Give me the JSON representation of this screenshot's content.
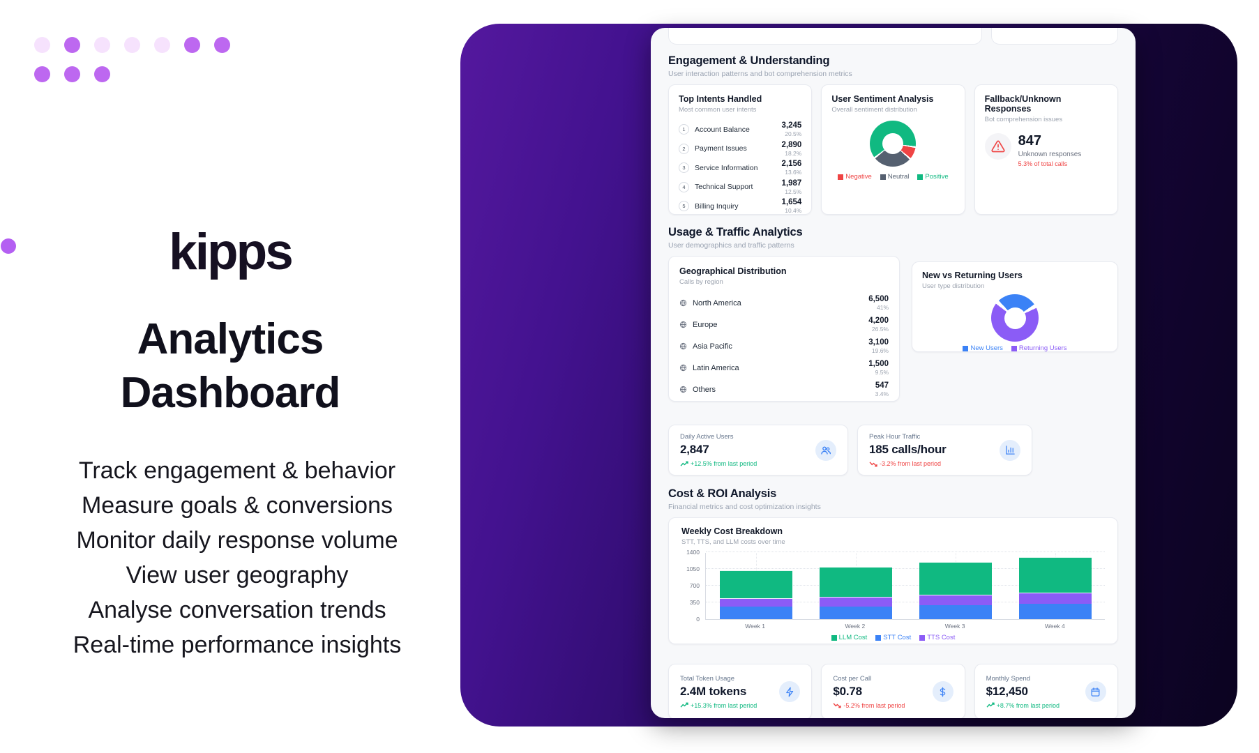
{
  "brand": {
    "logo_text": "kipps"
  },
  "hero": {
    "title_line1": "Analytics",
    "title_line2": "Dashboard",
    "features": [
      "Track engagement & behavior",
      "Measure goals & conversions",
      "Monitor daily response volume",
      "View user geography",
      "Analyse conversation trends",
      "Real-time performance insights"
    ]
  },
  "colors": {
    "dot_bright": "#bd68f0",
    "dot_light": "#f6e2fd",
    "panel_purple": "#43128f",
    "panel_dark": "#0b0320",
    "green": "#10b981",
    "red": "#ef4444",
    "blue": "#3b82f6",
    "violet": "#8b5cf6",
    "slate": "#556070"
  },
  "dashboard": {
    "engagement": {
      "title": "Engagement & Understanding",
      "subtitle": "User interaction patterns and bot comprehension metrics"
    },
    "top_intents": {
      "title": "Top Intents Handled",
      "subtitle": "Most common user intents",
      "items": [
        {
          "rank": "1",
          "name": "Account Balance",
          "value": "3,245",
          "pct": "20.5%"
        },
        {
          "rank": "2",
          "name": "Payment Issues",
          "value": "2,890",
          "pct": "18.2%"
        },
        {
          "rank": "3",
          "name": "Service Information",
          "value": "2,156",
          "pct": "13.6%"
        },
        {
          "rank": "4",
          "name": "Technical Support",
          "value": "1,987",
          "pct": "12.5%"
        },
        {
          "rank": "5",
          "name": "Billing Inquiry",
          "value": "1,654",
          "pct": "10.4%"
        }
      ]
    },
    "sentiment": {
      "title": "User Sentiment Analysis",
      "subtitle": "Overall sentiment distribution"
    },
    "fallback": {
      "title": "Fallback/Unknown Responses",
      "subtitle": "Bot comprehension issues",
      "icon": "warning-icon",
      "value": "847",
      "label": "Unknown responses",
      "note": "5.3% of total calls"
    },
    "usage": {
      "title": "Usage & Traffic Analytics",
      "subtitle": "User demographics and traffic patterns"
    },
    "geography": {
      "title": "Geographical Distribution",
      "subtitle": "Calls by region",
      "icon": "globe-icon",
      "items": [
        {
          "name": "North America",
          "value": "6,500",
          "pct": "41%"
        },
        {
          "name": "Europe",
          "value": "4,200",
          "pct": "26.5%"
        },
        {
          "name": "Asia Pacific",
          "value": "3,100",
          "pct": "19.6%"
        },
        {
          "name": "Latin America",
          "value": "1,500",
          "pct": "9.5%"
        },
        {
          "name": "Others",
          "value": "547",
          "pct": "3.4%"
        }
      ]
    },
    "new_vs_returning": {
      "title": "New vs Returning Users",
      "subtitle": "User type distribution"
    },
    "stats": [
      {
        "label": "Daily Active Users",
        "value": "2,847",
        "change": "+12.5% from last period",
        "trend": "up",
        "icon": "users-icon"
      },
      {
        "label": "Peak Hour Traffic",
        "value": "185 calls/hour",
        "change": "-3.2% from last period",
        "trend": "down",
        "icon": "bar-chart-icon"
      }
    ],
    "cost": {
      "title": "Cost & ROI Analysis",
      "subtitle": "Financial metrics and cost optimization insights"
    },
    "weekly_cost": {
      "title": "Weekly Cost Breakdown",
      "subtitle": "STT, TTS, and LLM costs over time"
    },
    "bottom_stats": [
      {
        "label": "Total Token Usage",
        "value": "2.4M tokens",
        "change": "+15.3% from last period",
        "trend": "up",
        "icon": "lightning-icon"
      },
      {
        "label": "Cost per Call",
        "value": "$0.78",
        "change": "-5.2% from last period",
        "trend": "down",
        "icon": "dollar-icon"
      },
      {
        "label": "Monthly Spend",
        "value": "$12,450",
        "change": "+8.7% from last period",
        "trend": "up",
        "icon": "calendar-icon"
      }
    ]
  },
  "chart_data": [
    {
      "id": "sentiment_donut",
      "type": "pie",
      "title": "User Sentiment Analysis",
      "start_angle": -128,
      "gap_pct": 0.6,
      "slices": [
        {
          "label": "Positive",
          "value": 63,
          "color": "#10b981"
        },
        {
          "label": "Negative",
          "value": 9,
          "color": "#ef4444"
        },
        {
          "label": "Neutral",
          "value": 28,
          "color": "#556070"
        }
      ],
      "legend": [
        {
          "label": "Negative",
          "color": "#ef4444"
        },
        {
          "label": "Neutral",
          "color": "#556070"
        },
        {
          "label": "Positive",
          "color": "#10b981"
        }
      ],
      "legend_position": "bottom"
    },
    {
      "id": "users_donut",
      "type": "pie",
      "title": "New vs Returning Users",
      "start_angle": -48,
      "gap_pct": 1.4,
      "slices": [
        {
          "label": "New Users",
          "value": 30,
          "color": "#3b82f6"
        },
        {
          "label": "Returning Users",
          "value": 70,
          "color": "#8b5cf6"
        }
      ],
      "legend": [
        {
          "label": "New Users",
          "color": "#3b82f6"
        },
        {
          "label": "Returning Users",
          "color": "#8b5cf6"
        }
      ],
      "legend_position": "bottom"
    },
    {
      "id": "weekly_cost_bars",
      "type": "bar",
      "stacked": true,
      "title": "Weekly Cost Breakdown",
      "categories": [
        "Week 1",
        "Week 2",
        "Week 3",
        "Week 4"
      ],
      "series": [
        {
          "name": "STT Cost",
          "color": "#3b82f6",
          "values": [
            260,
            270,
            290,
            320
          ]
        },
        {
          "name": "TTS Cost",
          "color": "#8b5cf6",
          "values": [
            180,
            200,
            220,
            240
          ]
        },
        {
          "name": "LLM Cost",
          "color": "#10b981",
          "values": [
            580,
            630,
            690,
            740
          ]
        }
      ],
      "legend": [
        {
          "label": "LLM Cost",
          "color": "#10b981"
        },
        {
          "label": "STT Cost",
          "color": "#3b82f6"
        },
        {
          "label": "TTS Cost",
          "color": "#8b5cf6"
        }
      ],
      "ylim": [
        0,
        1400
      ],
      "yticks": [
        0,
        350,
        700,
        1050,
        1400
      ],
      "grid": true,
      "legend_position": "bottom",
      "xlabel": "",
      "ylabel": ""
    }
  ]
}
